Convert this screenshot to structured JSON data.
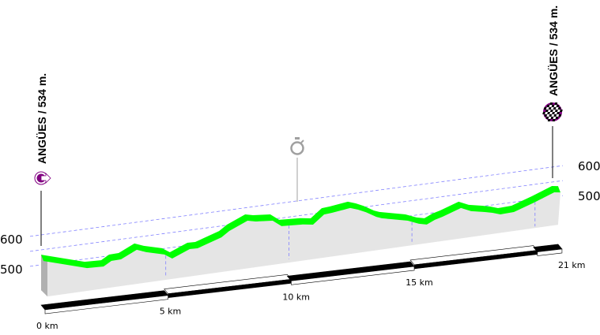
{
  "chart_data": {
    "type": "area",
    "title": "",
    "xlabel": "",
    "ylabel": "",
    "x_unit": "km",
    "xlim": [
      0,
      21
    ],
    "ylim": [
      405,
      620
    ],
    "grid": true,
    "x": [
      0,
      1.77,
      2.44,
      2.76,
      3.15,
      3.79,
      4.17,
      4.91,
      5.23,
      5.94,
      6.26,
      7.23,
      7.55,
      8.29,
      8.61,
      9.31,
      9.67,
      10.53,
      10.95,
      11.4,
      11.72,
      12.46,
      12.78,
      13.1,
      13.52,
      13.74,
      14.8,
      15.25,
      15.57,
      15.9,
      16.22,
      16.96,
      17.37,
      17.92,
      18.24,
      18.56,
      19.11,
      19.94,
      20.75,
      21
    ],
    "elevation": [
      534,
      491,
      489,
      504,
      505,
      530,
      518,
      502,
      485,
      509,
      508,
      534,
      552,
      578,
      572,
      567,
      545,
      541,
      536,
      565,
      567,
      575,
      566,
      554,
      534,
      527,
      507,
      492,
      486,
      498,
      505,
      526,
      511,
      502,
      496,
      487,
      489,
      512,
      537,
      534
    ],
    "y_ticks_left": [
      {
        "value": 600,
        "label": "600"
      },
      {
        "value": 500,
        "label": "500"
      }
    ],
    "y_ticks_right": [
      {
        "value": 600,
        "label": "600"
      },
      {
        "value": 500,
        "label": "500"
      }
    ],
    "x_ticks": [
      {
        "value": 0,
        "label": "0 km"
      },
      {
        "value": 5,
        "label": "5 km"
      },
      {
        "value": 10,
        "label": "10 km"
      },
      {
        "value": 15,
        "label": "15 km"
      },
      {
        "value": 21,
        "label": "21 km"
      }
    ],
    "markers": [
      {
        "km": 0,
        "type": "start",
        "icon": "start-flag-icon",
        "label": "ANGÜES / 534 m."
      },
      {
        "km": 10.3,
        "type": "time-check",
        "icon": "stopwatch-icon",
        "label": ""
      },
      {
        "km": 21,
        "type": "finish",
        "icon": "checkered-flag-icon",
        "label": "ANGÜES / 534 m."
      }
    ],
    "colors": {
      "profile": "#00ff00",
      "fill": "#e5e5e5",
      "side": "#b0b0b0",
      "grid": "#8080ff",
      "marker": "#800080",
      "stopwatch": "#a0a0a0"
    }
  }
}
